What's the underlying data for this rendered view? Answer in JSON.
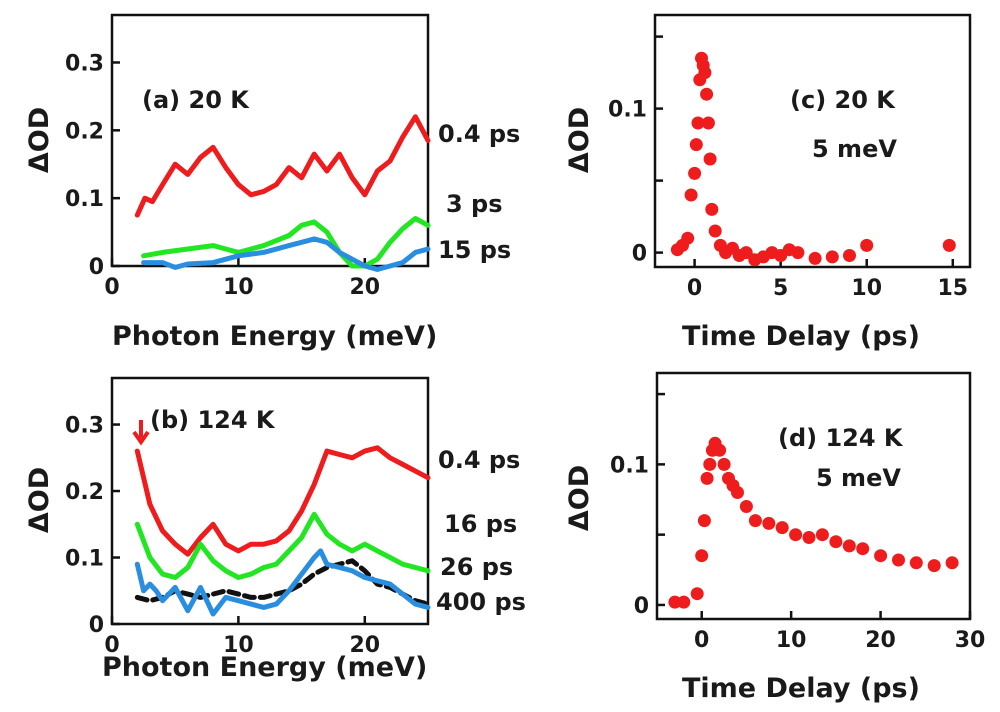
{
  "colors": {
    "red": "#ee1c1c",
    "green": "#22e622",
    "blue": "#2a8ee0",
    "black": "#111111",
    "axis": "#111111"
  },
  "chart_data": [
    {
      "id": "a",
      "type": "line",
      "annotation": "(a) 20 K",
      "xlabel": "Photon Energy (meV)",
      "ylabel": "ΔOD",
      "xlim": [
        0,
        25
      ],
      "ylim": [
        0,
        0.37
      ],
      "xticks": [
        {
          "v": 0,
          "label": "0"
        },
        {
          "v": 10,
          "label": "10"
        },
        {
          "v": 20,
          "label": "20"
        }
      ],
      "yticks": [
        {
          "v": 0,
          "label": "0"
        },
        {
          "v": 0.1,
          "label": "0.1"
        },
        {
          "v": 0.2,
          "label": "0.2"
        },
        {
          "v": 0.3,
          "label": "0.3"
        }
      ],
      "series": [
        {
          "name": "0.4 ps",
          "color": "#ee1c1c",
          "x": [
            2,
            2.6,
            3.2,
            4,
            5,
            6,
            7,
            8,
            9,
            10,
            11,
            12,
            13,
            14,
            15,
            16,
            17,
            18,
            19,
            20,
            21,
            22,
            23,
            24,
            25
          ],
          "y": [
            0.075,
            0.1,
            0.095,
            0.12,
            0.15,
            0.135,
            0.16,
            0.175,
            0.145,
            0.12,
            0.105,
            0.11,
            0.12,
            0.145,
            0.13,
            0.165,
            0.14,
            0.165,
            0.13,
            0.105,
            0.14,
            0.155,
            0.19,
            0.22,
            0.185
          ]
        },
        {
          "name": "3 ps",
          "color": "#22e622",
          "x": [
            2.5,
            4,
            6,
            8,
            9,
            10,
            12,
            14,
            15,
            16,
            17,
            18,
            19,
            20,
            21,
            22,
            23,
            24,
            25
          ],
          "y": [
            0.015,
            0.02,
            0.025,
            0.03,
            0.025,
            0.02,
            0.03,
            0.045,
            0.06,
            0.065,
            0.05,
            0.02,
            0.0,
            0.0,
            0.01,
            0.035,
            0.055,
            0.07,
            0.06
          ]
        },
        {
          "name": "15 ps",
          "color": "#2a8ee0",
          "x": [
            2.5,
            4,
            5,
            6,
            8,
            10,
            12,
            14,
            15,
            16,
            17,
            18,
            19,
            20,
            21,
            22,
            23,
            24,
            25
          ],
          "y": [
            0.005,
            0.005,
            -0.002,
            0.003,
            0.005,
            0.015,
            0.02,
            0.03,
            0.035,
            0.04,
            0.035,
            0.02,
            0.01,
            0.0,
            -0.005,
            0.0,
            0.005,
            0.02,
            0.025
          ]
        }
      ]
    },
    {
      "id": "b",
      "type": "line",
      "annotation": "(b) 124 K",
      "xlabel": "Photon Energy (meV)",
      "ylabel": "ΔOD",
      "xlim": [
        0,
        25
      ],
      "ylim": [
        0,
        0.37
      ],
      "xticks": [
        {
          "v": 0,
          "label": "0"
        },
        {
          "v": 10,
          "label": "10"
        },
        {
          "v": 20,
          "label": "20"
        }
      ],
      "yticks": [
        {
          "v": 0,
          "label": "0"
        },
        {
          "v": 0.1,
          "label": "0.1"
        },
        {
          "v": 0.2,
          "label": "0.2"
        },
        {
          "v": 0.3,
          "label": "0.3"
        }
      ],
      "series": [
        {
          "name": "0.4 ps",
          "color": "#ee1c1c",
          "x": [
            2,
            2.5,
            3,
            4,
            5,
            6,
            7,
            8,
            9,
            10,
            11,
            12,
            13,
            14,
            15,
            16,
            17,
            18,
            19,
            20,
            21,
            22,
            23,
            24,
            25
          ],
          "y": [
            0.26,
            0.22,
            0.18,
            0.14,
            0.12,
            0.105,
            0.13,
            0.15,
            0.12,
            0.11,
            0.12,
            0.12,
            0.125,
            0.14,
            0.17,
            0.21,
            0.26,
            0.255,
            0.25,
            0.26,
            0.265,
            0.25,
            0.24,
            0.23,
            0.22
          ]
        },
        {
          "name": "16 ps",
          "color": "#22e622",
          "x": [
            2,
            3,
            4,
            5,
            6,
            7,
            8,
            9,
            10,
            11,
            12,
            13,
            14,
            15,
            16,
            17,
            18,
            19,
            20,
            21,
            22,
            23,
            24,
            25
          ],
          "y": [
            0.15,
            0.1,
            0.075,
            0.07,
            0.085,
            0.12,
            0.095,
            0.08,
            0.07,
            0.075,
            0.085,
            0.09,
            0.11,
            0.13,
            0.165,
            0.135,
            0.12,
            0.11,
            0.12,
            0.11,
            0.1,
            0.09,
            0.085,
            0.08
          ]
        },
        {
          "name": "26 ps",
          "color": "#111111",
          "dashed": true,
          "x": [
            2,
            3,
            4,
            5,
            6,
            7,
            8,
            9,
            10,
            11,
            12,
            13,
            14,
            15,
            16,
            17,
            18,
            19,
            20,
            21,
            22,
            23,
            24,
            25
          ],
          "y": [
            0.04,
            0.035,
            0.04,
            0.05,
            0.045,
            0.04,
            0.045,
            0.05,
            0.045,
            0.04,
            0.04,
            0.045,
            0.05,
            0.06,
            0.075,
            0.085,
            0.09,
            0.095,
            0.08,
            0.06,
            0.055,
            0.045,
            0.035,
            0.03
          ]
        },
        {
          "name": "400 ps",
          "color": "#2a8ee0",
          "x": [
            2,
            2.5,
            3,
            3.5,
            4,
            5,
            6,
            7,
            8,
            9,
            10,
            11,
            12,
            13,
            14,
            15,
            16,
            16.5,
            17,
            18,
            19,
            20,
            21,
            22,
            23,
            24,
            25
          ],
          "y": [
            0.09,
            0.05,
            0.06,
            0.05,
            0.035,
            0.055,
            0.02,
            0.055,
            0.015,
            0.04,
            0.035,
            0.03,
            0.025,
            0.03,
            0.05,
            0.075,
            0.1,
            0.11,
            0.09,
            0.085,
            0.08,
            0.07,
            0.065,
            0.06,
            0.045,
            0.03,
            0.025
          ]
        }
      ]
    },
    {
      "id": "c",
      "type": "scatter",
      "annotation": "(c) 20 K",
      "annotation2": "5 meV",
      "xlabel": "Time Delay (ps)",
      "ylabel": "ΔOD",
      "xlim": [
        -2.3,
        16
      ],
      "ylim": [
        -0.01,
        0.165
      ],
      "xticks": [
        {
          "v": 0,
          "label": "0"
        },
        {
          "v": 5,
          "label": "5"
        },
        {
          "v": 10,
          "label": "10"
        },
        {
          "v": 15,
          "label": "15"
        }
      ],
      "yticks": [
        {
          "v": 0,
          "label": "0"
        },
        {
          "v": 0.05,
          "label": ""
        },
        {
          "v": 0.1,
          "label": "0.1"
        },
        {
          "v": 0.15,
          "label": ""
        }
      ],
      "series": [
        {
          "name": "",
          "color": "#ee1c1c",
          "x": [
            -1,
            -0.7,
            -0.4,
            -0.2,
            0,
            0.1,
            0.2,
            0.3,
            0.4,
            0.5,
            0.6,
            0.7,
            0.8,
            0.9,
            1.0,
            1.2,
            1.5,
            1.8,
            2.2,
            2.6,
            3.0,
            3.5,
            4.0,
            4.5,
            5.0,
            5.5,
            6.0,
            7.0,
            8.0,
            9.0,
            10.0,
            14.8
          ],
          "y": [
            0.002,
            0.005,
            0.01,
            0.04,
            0.055,
            0.075,
            0.09,
            0.12,
            0.135,
            0.13,
            0.125,
            0.11,
            0.09,
            0.065,
            0.03,
            0.015,
            0.005,
            0.0,
            0.003,
            -0.002,
            0.0,
            -0.005,
            -0.003,
            0.0,
            -0.002,
            0.002,
            0.0,
            -0.004,
            -0.003,
            -0.002,
            0.005,
            0.005
          ]
        }
      ]
    },
    {
      "id": "d",
      "type": "scatter",
      "annotation": "(d) 124 K",
      "annotation2": "5 meV",
      "xlabel": "Time Delay (ps)",
      "ylabel": "ΔOD",
      "xlim": [
        -5,
        30
      ],
      "ylim": [
        -0.01,
        0.165
      ],
      "xticks": [
        {
          "v": 0,
          "label": "0"
        },
        {
          "v": 10,
          "label": "10"
        },
        {
          "v": 20,
          "label": "20"
        },
        {
          "v": 30,
          "label": "30"
        }
      ],
      "yticks": [
        {
          "v": 0,
          "label": "0"
        },
        {
          "v": 0.05,
          "label": ""
        },
        {
          "v": 0.1,
          "label": "0.1"
        },
        {
          "v": 0.15,
          "label": ""
        }
      ],
      "series": [
        {
          "name": "",
          "color": "#ee1c1c",
          "x": [
            -3,
            -2,
            -0.5,
            0,
            0.3,
            0.6,
            0.9,
            1.2,
            1.5,
            2.0,
            2.5,
            3.0,
            3.5,
            4.0,
            5.0,
            6.0,
            7.5,
            9.0,
            10.5,
            12.0,
            13.5,
            15.0,
            16.5,
            18.0,
            20.0,
            22.0,
            24.0,
            26.0,
            28.0
          ],
          "y": [
            0.002,
            0.002,
            0.008,
            0.035,
            0.06,
            0.09,
            0.1,
            0.11,
            0.115,
            0.11,
            0.1,
            0.09,
            0.085,
            0.08,
            0.07,
            0.06,
            0.058,
            0.055,
            0.05,
            0.048,
            0.05,
            0.045,
            0.042,
            0.04,
            0.035,
            0.032,
            0.03,
            0.028,
            0.03
          ]
        }
      ]
    }
  ]
}
